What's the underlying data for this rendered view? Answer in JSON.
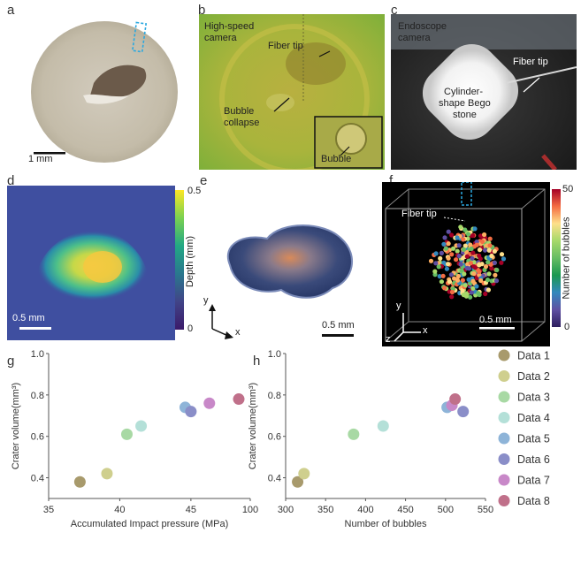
{
  "panel_labels": [
    "a",
    "b",
    "c",
    "d",
    "e",
    "f",
    "g",
    "h"
  ],
  "panel_a": {
    "scalebar": "1 mm"
  },
  "panel_b": {
    "camera": [
      "High-speed",
      "camera"
    ],
    "fiber_tip": "Fiber tip",
    "collapse": [
      "Bubble",
      "collapse"
    ],
    "bubble": "Bubble"
  },
  "panel_c": {
    "camera": [
      "Endoscope",
      "camera"
    ],
    "fiber_tip": "Fiber tip",
    "stone": [
      "Cylinder-",
      "shape Bego",
      "stone"
    ]
  },
  "panel_d": {
    "scalebar": "0.5 mm",
    "colorbar_label": "Depth (mm)",
    "colorbar_ticks": [
      "0.5",
      "0"
    ]
  },
  "panel_e": {
    "scalebar": "0.5 mm",
    "axis_x": "x",
    "axis_y": "y"
  },
  "panel_f": {
    "fiber_tip": "Fiber tip",
    "scalebar": "0.5 mm",
    "colorbar_label": "Number of bubbles",
    "colorbar_ticks": [
      "50",
      "0"
    ],
    "axis_x": "x",
    "axis_y": "y",
    "axis_z": "z"
  },
  "legend": [
    "Data 1",
    "Data 2",
    "Data 3",
    "Data 4",
    "Data 5",
    "Data 6",
    "Data 7",
    "Data 8"
  ],
  "colors": [
    "#a89a6c",
    "#cfcf8e",
    "#a8d9a4",
    "#b4e0d8",
    "#8eb4d8",
    "#8a8ec8",
    "#c888c8",
    "#c0708a"
  ],
  "chart_data": [
    {
      "type": "scatter",
      "panel": "g",
      "xlabel": "Accumulated Impact pressure (MPa)",
      "ylabel": "Crater volume(mm³)",
      "xticks": [
        "35",
        "40",
        "45",
        "100"
      ],
      "yticks": [
        "0.4",
        "0.6",
        "0.8",
        "1.0"
      ],
      "ylim": [
        0.3,
        1.0
      ],
      "x": [
        "37.2",
        "39.1",
        "40.5",
        "41.5",
        "44.6",
        "45.0",
        "46.3",
        "99"
      ],
      "y": [
        0.38,
        0.42,
        0.61,
        0.65,
        0.74,
        0.72,
        0.76,
        0.78
      ]
    },
    {
      "type": "scatter",
      "panel": "h",
      "xlabel": "Number of bubbles",
      "ylabel": "Crater volume(mm³)",
      "xticks": [
        "300",
        "350",
        "400",
        "450",
        "500",
        "550"
      ],
      "yticks": [
        "0.4",
        "0.6",
        "0.8",
        "1.0"
      ],
      "xlim": [
        300,
        550
      ],
      "ylim": [
        0.3,
        1.0
      ],
      "x": [
        315,
        323,
        385,
        422,
        502,
        522,
        508,
        512
      ],
      "y": [
        0.38,
        0.42,
        0.61,
        0.65,
        0.74,
        0.72,
        0.75,
        0.78
      ]
    }
  ]
}
